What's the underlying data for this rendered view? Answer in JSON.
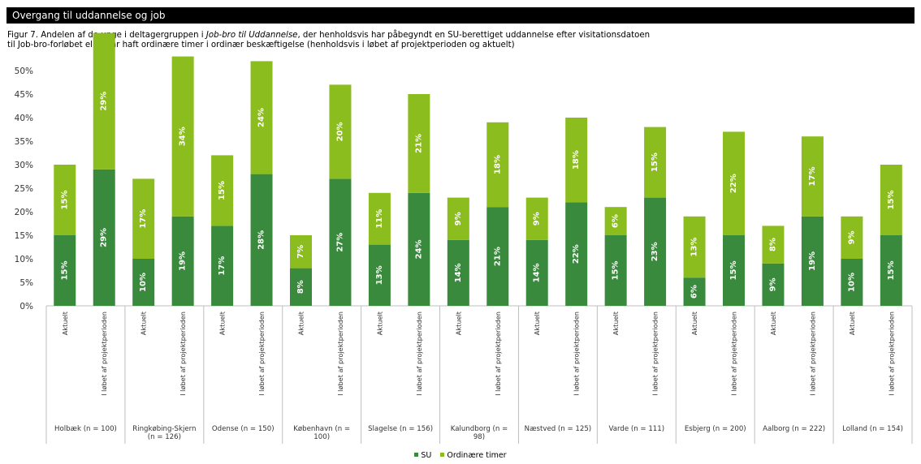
{
  "header": {
    "title": "Overgang til uddannelse og job"
  },
  "caption": {
    "line1_prefix": "Figur 7. Andelen af de unge i deltagergruppen i ",
    "line1_italic": "Job-bro til Uddannelse",
    "line1_suffix": ", der henholdsvis har påbegyndt en SU-berettiget uddannelse efter visitationsdatoen",
    "line2": "til Job-bro-forløbet eller har haft ordinære timer i ordinær beskæftigelse (henholdsvis i løbet af projektperioden og aktuelt)"
  },
  "colors": {
    "su": "#3a8a3d",
    "ordinaere": "#8cbd1e",
    "axis": "#bfbfbf"
  },
  "chart_data": {
    "type": "bar",
    "stacked": true,
    "title": "",
    "xlabel": "",
    "ylabel": "",
    "ylim": [
      0,
      50
    ],
    "yticks": [
      "0%",
      "5%",
      "10%",
      "15%",
      "20%",
      "25%",
      "30%",
      "35%",
      "40%",
      "45%",
      "50%"
    ],
    "subcategories": [
      "Aktuelt",
      "I løbet af projektperioden"
    ],
    "groups": [
      {
        "label": "Holbæk (n = 100)",
        "su": [
          15,
          29
        ],
        "ordinaere": [
          15,
          29
        ]
      },
      {
        "label": "Ringkøbing-Skjern (n = 126)",
        "su": [
          10,
          19
        ],
        "ordinaere": [
          17,
          34
        ]
      },
      {
        "label": "Odense (n = 150)",
        "su": [
          17,
          28
        ],
        "ordinaere": [
          15,
          24
        ]
      },
      {
        "label": "København (n = 100)",
        "su": [
          8,
          27
        ],
        "ordinaere": [
          7,
          20
        ]
      },
      {
        "label": "Slagelse (n = 156)",
        "su": [
          13,
          24
        ],
        "ordinaere": [
          11,
          21
        ]
      },
      {
        "label": "Kalundborg (n = 98)",
        "su": [
          14,
          21
        ],
        "ordinaere": [
          9,
          18
        ]
      },
      {
        "label": "Næstved (n = 125)",
        "su": [
          14,
          22
        ],
        "ordinaere": [
          9,
          18
        ]
      },
      {
        "label": "Varde (n = 111)",
        "su": [
          15,
          23
        ],
        "ordinaere": [
          6,
          15
        ]
      },
      {
        "label": "Esbjerg (n = 200)",
        "su": [
          6,
          15
        ],
        "ordinaere": [
          13,
          22
        ]
      },
      {
        "label": "Aalborg (n = 222)",
        "su": [
          9,
          19
        ],
        "ordinaere": [
          8,
          17
        ]
      },
      {
        "label": "Lolland (n = 154)",
        "su": [
          10,
          15
        ],
        "ordinaere": [
          9,
          15
        ]
      }
    ],
    "series": [
      {
        "name": "SU",
        "key": "su"
      },
      {
        "name": "Ordinære timer",
        "key": "ordinaere"
      }
    ],
    "legend_position": "bottom",
    "grid": false
  }
}
